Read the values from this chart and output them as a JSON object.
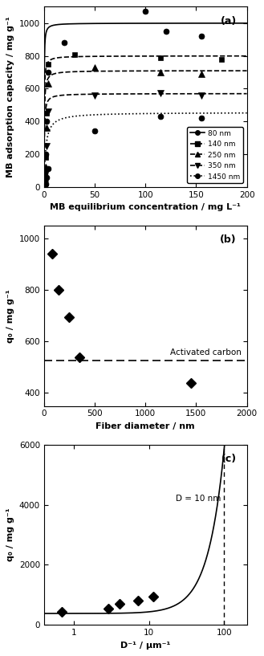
{
  "panel_a": {
    "title": "(a)",
    "xlabel": "MB equilibrium concentration / mg L⁻¹",
    "ylabel": "MB adsorption capacity / mg g⁻¹",
    "xlim": [
      0,
      200
    ],
    "ylim": [
      0,
      1100
    ],
    "yticks": [
      0,
      200,
      400,
      600,
      800,
      1000
    ],
    "xticks": [
      0,
      50,
      100,
      150,
      200
    ],
    "series": [
      {
        "label": "80 nm",
        "linestyle": "-",
        "marker": "o",
        "q0": 1000,
        "KL": 8.0,
        "data_x": [
          0.3,
          0.8,
          1.5,
          2.5,
          4.0,
          20,
          100,
          120,
          155
        ],
        "data_y": [
          20,
          80,
          200,
          400,
          700,
          880,
          1070,
          950,
          920
        ]
      },
      {
        "label": "140 nm",
        "linestyle": "--",
        "marker": "s",
        "q0": 800,
        "KL": 5.0,
        "data_x": [
          0.3,
          0.8,
          1.5,
          2.5,
          4.0,
          30,
          115,
          175
        ],
        "data_y": [
          10,
          50,
          180,
          450,
          750,
          810,
          790,
          780
        ]
      },
      {
        "label": "250 nm",
        "linestyle": "--",
        "marker": "^",
        "q0": 710,
        "KL": 3.5,
        "data_x": [
          0.3,
          0.8,
          1.5,
          2.5,
          4.0,
          50,
          115,
          155
        ],
        "data_y": [
          5,
          30,
          120,
          360,
          630,
          730,
          700,
          690
        ]
      },
      {
        "label": "350 nm",
        "linestyle": "--",
        "marker": "v",
        "q0": 570,
        "KL": 3.0,
        "data_x": [
          0.3,
          0.8,
          1.5,
          2.5,
          4.0,
          50,
          115,
          155
        ],
        "data_y": [
          5,
          20,
          80,
          250,
          460,
          560,
          570,
          560
        ]
      },
      {
        "label": "1450 nm",
        "linestyle": ":",
        "marker": "o",
        "q0": 455,
        "KL": 0.6,
        "data_x": [
          0.3,
          0.8,
          1.5,
          2.5,
          4.0,
          50,
          115,
          155
        ],
        "data_y": [
          2,
          8,
          20,
          60,
          110,
          340,
          430,
          420
        ]
      }
    ]
  },
  "panel_b": {
    "title": "(b)",
    "xlabel": "Fiber diameter / nm",
    "ylabel": "q₀ / mg g⁻¹",
    "xlim": [
      0,
      2000
    ],
    "ylim": [
      350,
      1050
    ],
    "yticks": [
      400,
      600,
      800,
      1000
    ],
    "xticks": [
      0,
      500,
      1000,
      1500,
      2000
    ],
    "activated_carbon_y": 525,
    "data_x": [
      80,
      140,
      250,
      350,
      1450
    ],
    "data_y": [
      940,
      800,
      695,
      540,
      440
    ]
  },
  "panel_c": {
    "title": "(c)",
    "xlabel": "D⁻¹ / μm⁻¹",
    "ylabel": "q₀ / mg g⁻¹",
    "ylim": [
      0,
      6000
    ],
    "yticks": [
      0,
      2000,
      4000,
      6000
    ],
    "d10nm_x": 100,
    "data_x": [
      0.69,
      2.86,
      4.0,
      7.14,
      11.43
    ],
    "data_y": [
      440,
      540,
      695,
      800,
      940
    ],
    "curve_A": 380,
    "curve_B": 0.55,
    "annotation": "D = 10 nm"
  }
}
